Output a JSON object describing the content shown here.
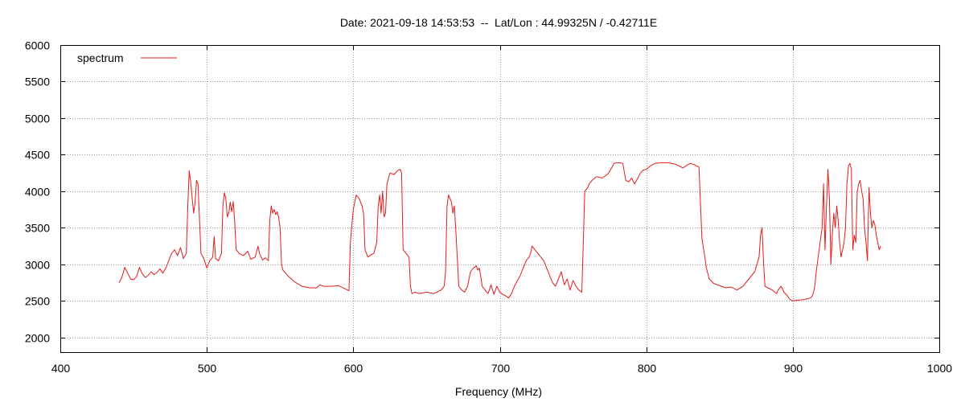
{
  "chart_data": {
    "type": "line",
    "title": "Date: 2021-09-18 14:53:53  --  Lat/Lon : 44.99325N / -0.42711E",
    "xlabel": "Frequency (MHz)",
    "ylabel": "",
    "xlim": [
      400,
      1000
    ],
    "ylim": [
      1800,
      6000
    ],
    "xticks": [
      400,
      500,
      600,
      700,
      800,
      900,
      1000
    ],
    "yticks": [
      2000,
      2500,
      3000,
      3500,
      4000,
      4500,
      5000,
      5500,
      6000
    ],
    "grid": true,
    "legend_position": "top-left",
    "series": [
      {
        "name": "spectrum",
        "color": "#e41a1c",
        "x": [
          440,
          442,
          444,
          446,
          448,
          450,
          452,
          454,
          456,
          458,
          460,
          462,
          464,
          466,
          468,
          470,
          472,
          474,
          476,
          478,
          480,
          482,
          484,
          486,
          487,
          488,
          489,
          490,
          491,
          492,
          493,
          494,
          496,
          498,
          500,
          502,
          504,
          505,
          506,
          508,
          510,
          511,
          512,
          513,
          514,
          515,
          516,
          517,
          518,
          519,
          520,
          521,
          522,
          525,
          528,
          530,
          533,
          535,
          536,
          538,
          540,
          542,
          543,
          544,
          545,
          546,
          547,
          548,
          549,
          550,
          551,
          552,
          555,
          560,
          565,
          570,
          575,
          577,
          580,
          585,
          590,
          595,
          597,
          598,
          600,
          602,
          604,
          606,
          607,
          608,
          610,
          612,
          614,
          616,
          617,
          618,
          619,
          620,
          621,
          622,
          623,
          625,
          628,
          630,
          632,
          633,
          634,
          636,
          638,
          639,
          640,
          642,
          645,
          650,
          655,
          660,
          662,
          663,
          664,
          665,
          666,
          667,
          668,
          669,
          670,
          672,
          674,
          676,
          678,
          680,
          682,
          684,
          685,
          686,
          687,
          688,
          690,
          692,
          694,
          696,
          698,
          700,
          702,
          704,
          706,
          708,
          710,
          712,
          714,
          716,
          718,
          720,
          721,
          722,
          724,
          726,
          728,
          730,
          732,
          734,
          736,
          738,
          740,
          742,
          744,
          746,
          748,
          750,
          752,
          754,
          756,
          758,
          760,
          761,
          763,
          766,
          770,
          774,
          778,
          780,
          782,
          784,
          786,
          788,
          790,
          792,
          794,
          796,
          798,
          800,
          803,
          806,
          810,
          815,
          820,
          825,
          828,
          830,
          832,
          834,
          836,
          838,
          840,
          841,
          843,
          846,
          850,
          854,
          858,
          862,
          866,
          870,
          874,
          877,
          878,
          879,
          880,
          881,
          883,
          886,
          889,
          890,
          892,
          894,
          896,
          898,
          900,
          904,
          908,
          912,
          913,
          914,
          915,
          916,
          918,
          920,
          921,
          922,
          923,
          924,
          925,
          926,
          927,
          928,
          929,
          930,
          931,
          932,
          933,
          934,
          935,
          936,
          937,
          938,
          939,
          940,
          941,
          942,
          943,
          944,
          945,
          946,
          947,
          948,
          949,
          950,
          951,
          952,
          953,
          954,
          955,
          956,
          957,
          958,
          959,
          960
        ],
        "y": [
          2750,
          2820,
          2960,
          2880,
          2800,
          2790,
          2830,
          2960,
          2870,
          2820,
          2850,
          2900,
          2860,
          2890,
          2940,
          2880,
          2950,
          3050,
          3150,
          3200,
          3120,
          3230,
          3080,
          3150,
          3800,
          4280,
          4130,
          3920,
          3700,
          3850,
          4150,
          4100,
          3150,
          3080,
          2950,
          3050,
          3100,
          3380,
          3080,
          3050,
          3150,
          3800,
          3980,
          3900,
          3650,
          3700,
          3850,
          3720,
          3860,
          3600,
          3200,
          3180,
          3150,
          3120,
          3180,
          3070,
          3100,
          3250,
          3150,
          3060,
          3090,
          3050,
          3600,
          3800,
          3700,
          3750,
          3680,
          3720,
          3650,
          3500,
          3000,
          2920,
          2850,
          2760,
          2700,
          2680,
          2680,
          2720,
          2700,
          2700,
          2710,
          2660,
          2640,
          3300,
          3750,
          3950,
          3900,
          3800,
          3700,
          3200,
          3100,
          3130,
          3150,
          3300,
          3800,
          3950,
          3700,
          4000,
          3650,
          3700,
          4100,
          4250,
          4230,
          4280,
          4300,
          4250,
          3200,
          3150,
          3100,
          2700,
          2600,
          2620,
          2600,
          2620,
          2600,
          2650,
          2700,
          2900,
          3800,
          3950,
          3900,
          3850,
          3700,
          3800,
          3450,
          2700,
          2650,
          2620,
          2700,
          2900,
          2950,
          2980,
          2920,
          2950,
          2840,
          2700,
          2650,
          2600,
          2720,
          2590,
          2700,
          2620,
          2590,
          2570,
          2540,
          2600,
          2700,
          2780,
          2850,
          2950,
          3050,
          3100,
          3150,
          3250,
          3200,
          3150,
          3100,
          3050,
          2950,
          2850,
          2750,
          2700,
          2800,
          2900,
          2720,
          2800,
          2650,
          2780,
          2700,
          2650,
          2620,
          4000,
          4050,
          4100,
          4150,
          4200,
          4180,
          4240,
          4380,
          4390,
          4390,
          4380,
          4150,
          4130,
          4180,
          4100,
          4170,
          4250,
          4290,
          4300,
          4350,
          4380,
          4390,
          4390,
          4370,
          4320,
          4360,
          4380,
          4370,
          4350,
          4330,
          3350,
          3100,
          2950,
          2800,
          2740,
          2710,
          2680,
          2690,
          2650,
          2700,
          2800,
          2900,
          3100,
          3400,
          3500,
          3050,
          2700,
          2680,
          2650,
          2600,
          2650,
          2700,
          2620,
          2580,
          2520,
          2500,
          2510,
          2520,
          2540,
          2560,
          2600,
          2700,
          2900,
          3200,
          3500,
          4100,
          3200,
          3800,
          4300,
          3900,
          3000,
          3400,
          3700,
          3500,
          3800,
          3600,
          3300,
          3100,
          3200,
          3300,
          3500,
          4100,
          4350,
          4380,
          4300,
          3200,
          3400,
          3300,
          4000,
          4100,
          4150,
          4000,
          3900,
          3500,
          3300,
          3050,
          4050,
          3700,
          3500,
          3600,
          3550,
          3400,
          3300,
          3200,
          3250
        ]
      }
    ]
  }
}
